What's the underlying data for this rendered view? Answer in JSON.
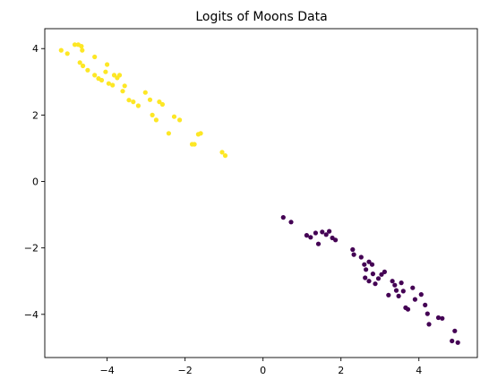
{
  "chart_data": {
    "type": "scatter",
    "title": "Logits of Moons Data",
    "xlabel": "",
    "ylabel": "",
    "xlim": [
      -5.6,
      5.5
    ],
    "ylim": [
      -5.3,
      4.6
    ],
    "xticks": [
      -4,
      -2,
      0,
      2,
      4
    ],
    "yticks": [
      -4,
      -2,
      0,
      2,
      4
    ],
    "grid": false,
    "series": [
      {
        "color": "#fde725",
        "points": [
          [
            -5.18,
            3.95
          ],
          [
            -5.02,
            3.85
          ],
          [
            -4.83,
            4.12
          ],
          [
            -4.74,
            4.12
          ],
          [
            -4.66,
            4.07
          ],
          [
            -4.64,
            3.95
          ],
          [
            -4.7,
            3.58
          ],
          [
            -4.62,
            3.48
          ],
          [
            -4.5,
            3.35
          ],
          [
            -4.32,
            3.75
          ],
          [
            -4.32,
            3.2
          ],
          [
            -4.22,
            3.1
          ],
          [
            -4.14,
            3.05
          ],
          [
            -4.04,
            3.3
          ],
          [
            -4.0,
            3.52
          ],
          [
            -3.96,
            2.95
          ],
          [
            -3.86,
            2.9
          ],
          [
            -3.82,
            3.2
          ],
          [
            -3.74,
            3.12
          ],
          [
            -3.68,
            3.2
          ],
          [
            -3.6,
            2.72
          ],
          [
            -3.55,
            2.88
          ],
          [
            -3.44,
            2.45
          ],
          [
            -3.33,
            2.4
          ],
          [
            -3.2,
            2.28
          ],
          [
            -3.02,
            2.68
          ],
          [
            -2.9,
            2.46
          ],
          [
            -2.84,
            2.0
          ],
          [
            -2.74,
            1.85
          ],
          [
            -2.66,
            2.4
          ],
          [
            -2.58,
            2.32
          ],
          [
            -2.42,
            1.45
          ],
          [
            -2.28,
            1.95
          ],
          [
            -2.14,
            1.85
          ],
          [
            -1.82,
            1.12
          ],
          [
            -1.76,
            1.12
          ],
          [
            -1.66,
            1.42
          ],
          [
            -1.6,
            1.45
          ],
          [
            -1.05,
            0.88
          ],
          [
            -0.97,
            0.78
          ]
        ]
      },
      {
        "color": "#440154",
        "points": [
          [
            0.52,
            -1.08
          ],
          [
            0.72,
            -1.22
          ],
          [
            1.12,
            -1.62
          ],
          [
            1.22,
            -1.68
          ],
          [
            1.35,
            -1.55
          ],
          [
            1.42,
            -1.88
          ],
          [
            1.52,
            -1.52
          ],
          [
            1.62,
            -1.6
          ],
          [
            1.7,
            -1.5
          ],
          [
            1.78,
            -1.7
          ],
          [
            1.86,
            -1.76
          ],
          [
            2.3,
            -2.05
          ],
          [
            2.33,
            -2.2
          ],
          [
            2.52,
            -2.28
          ],
          [
            2.6,
            -2.5
          ],
          [
            2.64,
            -2.65
          ],
          [
            2.72,
            -2.42
          ],
          [
            2.8,
            -2.5
          ],
          [
            2.62,
            -2.9
          ],
          [
            2.72,
            -3.0
          ],
          [
            2.82,
            -2.78
          ],
          [
            2.88,
            -3.08
          ],
          [
            2.96,
            -2.92
          ],
          [
            3.04,
            -2.8
          ],
          [
            3.12,
            -2.72
          ],
          [
            3.22,
            -3.42
          ],
          [
            3.32,
            -3.0
          ],
          [
            3.38,
            -3.12
          ],
          [
            3.42,
            -3.28
          ],
          [
            3.48,
            -3.45
          ],
          [
            3.55,
            -3.05
          ],
          [
            3.6,
            -3.3
          ],
          [
            3.66,
            -3.8
          ],
          [
            3.72,
            -3.85
          ],
          [
            3.84,
            -3.2
          ],
          [
            3.9,
            -3.55
          ],
          [
            4.06,
            -3.4
          ],
          [
            4.16,
            -3.72
          ],
          [
            4.22,
            -3.98
          ],
          [
            4.26,
            -4.3
          ],
          [
            4.5,
            -4.1
          ],
          [
            4.6,
            -4.12
          ],
          [
            4.85,
            -4.8
          ],
          [
            4.92,
            -4.5
          ],
          [
            5.0,
            -4.85
          ]
        ]
      }
    ]
  }
}
